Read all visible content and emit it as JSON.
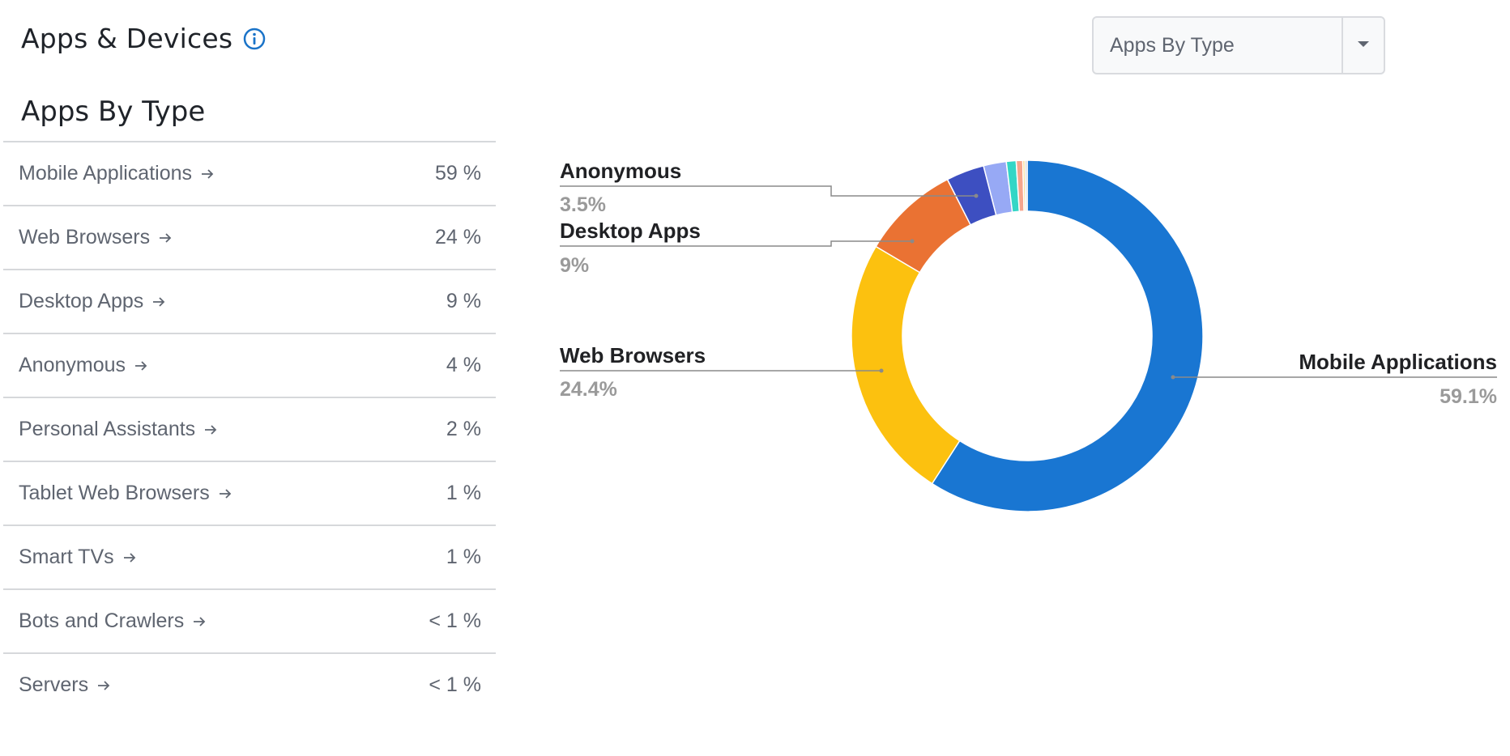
{
  "header": {
    "title": "Apps & Devices",
    "info_icon": "info-circle-icon",
    "accent_color": "#1a73c8"
  },
  "section": {
    "title": "Apps By Type"
  },
  "table": {
    "rows": [
      {
        "label": "Mobile Applications",
        "value": "59 %"
      },
      {
        "label": "Web Browsers",
        "value": "24 %"
      },
      {
        "label": "Desktop Apps",
        "value": "9 %"
      },
      {
        "label": "Anonymous",
        "value": "4 %"
      },
      {
        "label": "Personal Assistants",
        "value": "2 %"
      },
      {
        "label": "Tablet Web Browsers",
        "value": "1 %"
      },
      {
        "label": "Smart TVs",
        "value": "1 %"
      },
      {
        "label": "Bots and Crawlers",
        "value": "< 1 %"
      },
      {
        "label": "Servers",
        "value": "< 1 %"
      }
    ],
    "row_icon": "arrow-right-icon"
  },
  "dropdown": {
    "selected": "Apps By Type",
    "icon": "caret-down-icon"
  },
  "chart_data": {
    "type": "pie",
    "donut": true,
    "start": "top, clockwise",
    "slices": [
      {
        "name": "Mobile Applications",
        "value": 59.1,
        "color": "#1976d2"
      },
      {
        "name": "Web Browsers",
        "value": 24.4,
        "color": "#fcc10f"
      },
      {
        "name": "Desktop Apps",
        "value": 9.0,
        "color": "#ea7233"
      },
      {
        "name": "Anonymous",
        "value": 3.5,
        "color": "#3d4fc1"
      },
      {
        "name": "Personal Assistants",
        "value": 2.1,
        "color": "#97a9f5"
      },
      {
        "name": "Tablet Web Browsers",
        "value": 0.9,
        "color": "#33d6c6"
      },
      {
        "name": "Smart TVs",
        "value": 0.6,
        "color": "#f6a58d"
      },
      {
        "name": "Bots and Crawlers",
        "value": 0.2,
        "color": "#f4d27a"
      },
      {
        "name": "Servers",
        "value": 0.2,
        "color": "#d0d0d0"
      }
    ],
    "labels": [
      {
        "name": "Anonymous",
        "pct": "3.5%"
      },
      {
        "name": "Desktop Apps",
        "pct": "9%"
      },
      {
        "name": "Web Browsers",
        "pct": "24.4%"
      },
      {
        "name": "Mobile Applications",
        "pct": "59.1%"
      }
    ]
  }
}
